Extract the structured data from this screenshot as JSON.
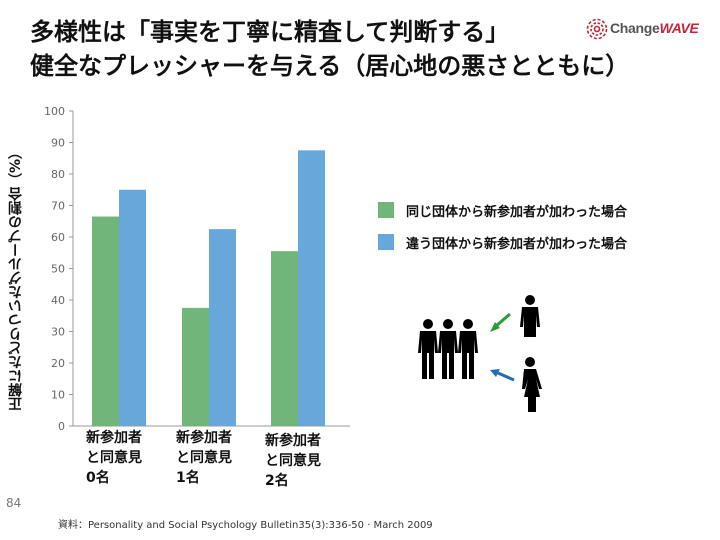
{
  "title": {
    "line1": "多様性は「事実を丁寧に精査して判断する」",
    "line2": "健全なプレッシャーを与える（居心地の悪さとともに）"
  },
  "logo": {
    "brand_text_1": "Change",
    "brand_text_2": "WAVE",
    "icon": "spiral-logo-icon"
  },
  "page_number": "84",
  "source": "資料：Personality and Social Psychology Bulletin35(3):336-50 · March 2009",
  "colors": {
    "green": "#72b57a",
    "blue": "#68a7d9",
    "axis": "#888888"
  },
  "icons": [
    "group-of-three-icon",
    "man-icon",
    "woman-icon",
    "green-arrow-icon",
    "blue-arrow-icon"
  ],
  "chart_data": {
    "type": "bar",
    "title": "",
    "xlabel": "",
    "ylabel": "正解にたどりついたグループの割合（%）",
    "ylim": [
      0,
      100
    ],
    "yticks": [
      "0",
      "10",
      "20",
      "30",
      "40",
      "50",
      "60",
      "70",
      "80",
      "90",
      "100"
    ],
    "categories": [
      "新参加者\nと同意見\n0名",
      "新参加者\nと同意見\n1名",
      "新参加者\nと同意見\n2名"
    ],
    "series": [
      {
        "name": "同じ団体から新参加者が加わった場合",
        "color": "#72b57a",
        "values": [
          66.5,
          37.5,
          55.5
        ]
      },
      {
        "name": "違う団体から新参加者が加わった場合",
        "color": "#68a7d9",
        "values": [
          75,
          62.5,
          87.5
        ]
      }
    ]
  }
}
